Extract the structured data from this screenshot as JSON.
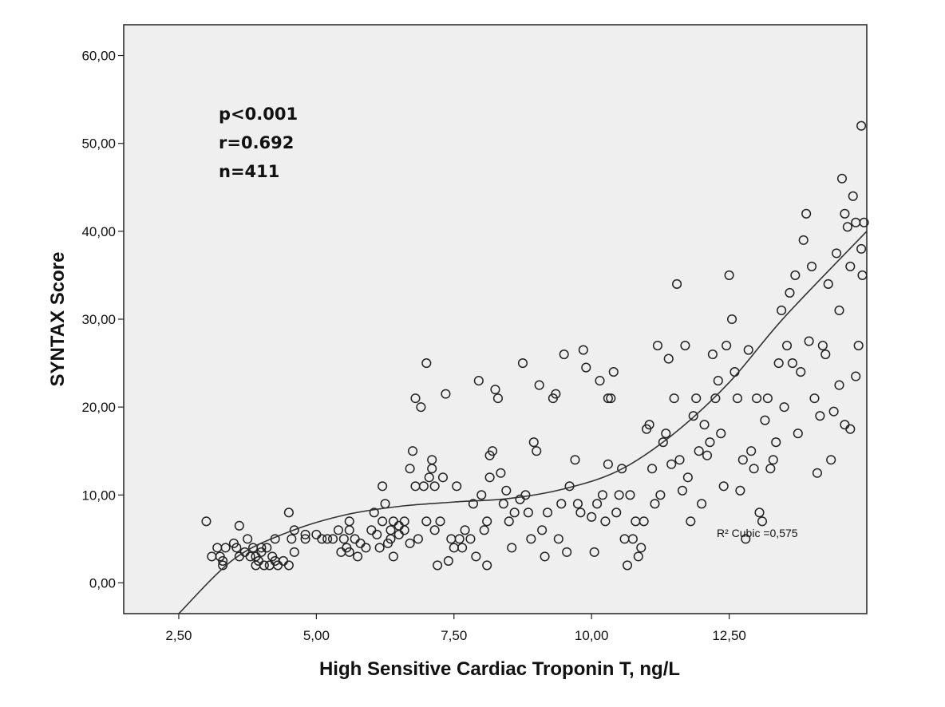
{
  "chart_data": {
    "type": "scatter",
    "xlabel": "High Sensitive Cardiac Troponin T, ng/L",
    "ylabel": "SYNTAX Score",
    "xlim": [
      1.5,
      15.0
    ],
    "ylim": [
      -3.5,
      63.5
    ],
    "x_ticks": [
      2.5,
      5.0,
      7.5,
      10.0,
      12.5
    ],
    "x_tick_labels": [
      "2,50",
      "5,00",
      "7,50",
      "10,00",
      "12,50"
    ],
    "y_ticks": [
      0,
      10,
      20,
      30,
      40,
      50,
      60
    ],
    "y_tick_labels": [
      "0,00",
      "10,00",
      "20,00",
      "30,00",
      "40,00",
      "50,00",
      "60,00"
    ],
    "annotations": [
      "p<0.001",
      "r=0.692",
      "n=411"
    ],
    "fit": {
      "type": "cubic",
      "label": "R² Cubic =0,575",
      "curve_x": [
        2.5,
        3.5,
        4.5,
        5.5,
        6.5,
        7.5,
        8.5,
        9.5,
        10.5,
        11.5,
        12.5,
        13.5,
        15.0
      ],
      "curve_y": [
        -3.5,
        2.7,
        5.8,
        7.7,
        8.7,
        9.2,
        9.6,
        10.7,
        12.8,
        17.0,
        22.8,
        30.2,
        40.0
      ]
    },
    "background": "#efefef",
    "marker": "open-circle",
    "grid": false,
    "points": [
      [
        3.0,
        7.0
      ],
      [
        3.1,
        3.0
      ],
      [
        3.2,
        4.0
      ],
      [
        3.25,
        3.0
      ],
      [
        3.3,
        2.5
      ],
      [
        3.3,
        2.0
      ],
      [
        3.35,
        4.0
      ],
      [
        3.5,
        4.5
      ],
      [
        3.55,
        4.0
      ],
      [
        3.6,
        6.5
      ],
      [
        3.6,
        3.0
      ],
      [
        3.7,
        3.5
      ],
      [
        3.75,
        5.0
      ],
      [
        3.8,
        3.0
      ],
      [
        3.85,
        4.0
      ],
      [
        3.9,
        2.0
      ],
      [
        3.9,
        3.0
      ],
      [
        3.95,
        2.5
      ],
      [
        4.0,
        3.5
      ],
      [
        4.0,
        4.0
      ],
      [
        4.05,
        2.0
      ],
      [
        4.1,
        4.0
      ],
      [
        4.15,
        2.0
      ],
      [
        4.2,
        3.0
      ],
      [
        4.25,
        2.5
      ],
      [
        4.25,
        5.0
      ],
      [
        4.3,
        2.0
      ],
      [
        4.4,
        2.5
      ],
      [
        4.5,
        8.0
      ],
      [
        4.5,
        2.0
      ],
      [
        4.55,
        5.0
      ],
      [
        4.6,
        3.5
      ],
      [
        4.6,
        6.0
      ],
      [
        4.8,
        5.0
      ],
      [
        4.8,
        5.5
      ],
      [
        5.0,
        5.5
      ],
      [
        5.1,
        5.0
      ],
      [
        5.2,
        5.0
      ],
      [
        5.3,
        5.0
      ],
      [
        5.4,
        6.0
      ],
      [
        5.45,
        3.5
      ],
      [
        5.5,
        5.0
      ],
      [
        5.55,
        4.0
      ],
      [
        5.6,
        6.0
      ],
      [
        5.6,
        7.0
      ],
      [
        5.6,
        3.5
      ],
      [
        5.7,
        5.0
      ],
      [
        5.75,
        3.0
      ],
      [
        5.8,
        4.5
      ],
      [
        5.9,
        4.0
      ],
      [
        6.0,
        6.0
      ],
      [
        6.05,
        8.0
      ],
      [
        6.1,
        5.5
      ],
      [
        6.15,
        4.0
      ],
      [
        6.2,
        7.0
      ],
      [
        6.2,
        11.0
      ],
      [
        6.25,
        9.0
      ],
      [
        6.3,
        4.5
      ],
      [
        6.35,
        5.0
      ],
      [
        6.35,
        6.0
      ],
      [
        6.4,
        3.0
      ],
      [
        6.4,
        7.0
      ],
      [
        6.5,
        5.5
      ],
      [
        6.5,
        6.5
      ],
      [
        6.6,
        6.0
      ],
      [
        6.6,
        7.0
      ],
      [
        6.7,
        4.5
      ],
      [
        6.7,
        13.0
      ],
      [
        6.75,
        15.0
      ],
      [
        6.8,
        11.0
      ],
      [
        6.8,
        21.0
      ],
      [
        6.85,
        5.0
      ],
      [
        6.9,
        20.0
      ],
      [
        6.95,
        11.0
      ],
      [
        7.0,
        7.0
      ],
      [
        7.05,
        12.0
      ],
      [
        7.0,
        25.0
      ],
      [
        7.1,
        14.0
      ],
      [
        7.1,
        13.0
      ],
      [
        7.15,
        11.0
      ],
      [
        7.15,
        6.0
      ],
      [
        7.2,
        2.0
      ],
      [
        7.25,
        7.0
      ],
      [
        7.3,
        12.0
      ],
      [
        7.35,
        21.5
      ],
      [
        7.4,
        2.5
      ],
      [
        7.45,
        5.0
      ],
      [
        7.5,
        4.0
      ],
      [
        7.55,
        11.0
      ],
      [
        7.6,
        5.0
      ],
      [
        7.65,
        4.0
      ],
      [
        7.7,
        6.0
      ],
      [
        7.8,
        5.0
      ],
      [
        7.85,
        9.0
      ],
      [
        7.9,
        3.0
      ],
      [
        7.95,
        23.0
      ],
      [
        8.0,
        10.0
      ],
      [
        8.05,
        6.0
      ],
      [
        8.1,
        7.0
      ],
      [
        8.1,
        2.0
      ],
      [
        8.15,
        14.5
      ],
      [
        8.15,
        12.0
      ],
      [
        8.2,
        15.0
      ],
      [
        8.25,
        22.0
      ],
      [
        8.3,
        21.0
      ],
      [
        8.35,
        12.5
      ],
      [
        8.4,
        9.0
      ],
      [
        8.45,
        10.5
      ],
      [
        8.5,
        7.0
      ],
      [
        8.55,
        4.0
      ],
      [
        8.6,
        8.0
      ],
      [
        8.7,
        9.5
      ],
      [
        8.75,
        25.0
      ],
      [
        8.8,
        10.0
      ],
      [
        8.85,
        8.0
      ],
      [
        8.9,
        5.0
      ],
      [
        8.95,
        16.0
      ],
      [
        9.0,
        15.0
      ],
      [
        9.05,
        22.5
      ],
      [
        9.1,
        6.0
      ],
      [
        9.15,
        3.0
      ],
      [
        9.2,
        8.0
      ],
      [
        9.3,
        21.0
      ],
      [
        9.35,
        21.5
      ],
      [
        9.4,
        5.0
      ],
      [
        9.45,
        9.0
      ],
      [
        9.5,
        26.0
      ],
      [
        9.55,
        3.5
      ],
      [
        9.6,
        11.0
      ],
      [
        9.7,
        14.0
      ],
      [
        9.75,
        9.0
      ],
      [
        9.8,
        8.0
      ],
      [
        9.85,
        26.5
      ],
      [
        9.9,
        24.5
      ],
      [
        10.0,
        7.5
      ],
      [
        10.05,
        3.5
      ],
      [
        10.1,
        9.0
      ],
      [
        10.15,
        23.0
      ],
      [
        10.2,
        10.0
      ],
      [
        10.25,
        7.0
      ],
      [
        10.3,
        13.5
      ],
      [
        10.3,
        21.0
      ],
      [
        10.35,
        21.0
      ],
      [
        10.4,
        24.0
      ],
      [
        10.45,
        8.0
      ],
      [
        10.5,
        10.0
      ],
      [
        10.55,
        13.0
      ],
      [
        10.6,
        5.0
      ],
      [
        10.65,
        2.0
      ],
      [
        10.7,
        10.0
      ],
      [
        10.75,
        5.0
      ],
      [
        10.8,
        7.0
      ],
      [
        10.85,
        3.0
      ],
      [
        10.9,
        4.0
      ],
      [
        10.95,
        7.0
      ],
      [
        11.0,
        17.5
      ],
      [
        11.05,
        18.0
      ],
      [
        11.1,
        13.0
      ],
      [
        11.15,
        9.0
      ],
      [
        11.2,
        27.0
      ],
      [
        11.25,
        10.0
      ],
      [
        11.3,
        16.0
      ],
      [
        11.35,
        17.0
      ],
      [
        11.4,
        25.5
      ],
      [
        11.45,
        13.5
      ],
      [
        11.5,
        21.0
      ],
      [
        11.55,
        34.0
      ],
      [
        11.6,
        14.0
      ],
      [
        11.65,
        10.5
      ],
      [
        11.7,
        27.0
      ],
      [
        11.75,
        12.0
      ],
      [
        11.8,
        7.0
      ],
      [
        11.85,
        19.0
      ],
      [
        11.9,
        21.0
      ],
      [
        11.95,
        15.0
      ],
      [
        12.0,
        9.0
      ],
      [
        12.05,
        18.0
      ],
      [
        12.1,
        14.5
      ],
      [
        12.15,
        16.0
      ],
      [
        12.2,
        26.0
      ],
      [
        12.25,
        21.0
      ],
      [
        12.3,
        23.0
      ],
      [
        12.35,
        17.0
      ],
      [
        12.4,
        11.0
      ],
      [
        12.45,
        27.0
      ],
      [
        12.5,
        35.0
      ],
      [
        12.55,
        30.0
      ],
      [
        12.6,
        24.0
      ],
      [
        12.65,
        21.0
      ],
      [
        12.7,
        10.5
      ],
      [
        12.75,
        14.0
      ],
      [
        12.8,
        5.0
      ],
      [
        12.85,
        26.5
      ],
      [
        12.9,
        15.0
      ],
      [
        12.95,
        13.0
      ],
      [
        13.0,
        21.0
      ],
      [
        13.05,
        8.0
      ],
      [
        13.1,
        7.0
      ],
      [
        13.15,
        18.5
      ],
      [
        13.2,
        21.0
      ],
      [
        13.25,
        13.0
      ],
      [
        13.3,
        14.0
      ],
      [
        13.35,
        16.0
      ],
      [
        13.4,
        25.0
      ],
      [
        13.45,
        31.0
      ],
      [
        13.5,
        20.0
      ],
      [
        13.55,
        27.0
      ],
      [
        13.6,
        33.0
      ],
      [
        13.65,
        25.0
      ],
      [
        13.7,
        35.0
      ],
      [
        13.75,
        17.0
      ],
      [
        13.8,
        24.0
      ],
      [
        13.85,
        39.0
      ],
      [
        13.9,
        42.0
      ],
      [
        13.95,
        27.5
      ],
      [
        14.0,
        36.0
      ],
      [
        14.05,
        21.0
      ],
      [
        14.1,
        12.5
      ],
      [
        14.15,
        19.0
      ],
      [
        14.2,
        27.0
      ],
      [
        14.25,
        26.0
      ],
      [
        14.3,
        34.0
      ],
      [
        14.35,
        14.0
      ],
      [
        14.4,
        19.5
      ],
      [
        14.45,
        37.5
      ],
      [
        14.5,
        31.0
      ],
      [
        14.55,
        46.0
      ],
      [
        14.6,
        42.0
      ],
      [
        14.65,
        40.5
      ],
      [
        14.7,
        36.0
      ],
      [
        14.75,
        44.0
      ],
      [
        14.8,
        41.0
      ],
      [
        14.85,
        27.0
      ],
      [
        14.9,
        52.0
      ],
      [
        14.95,
        41.0
      ],
      [
        14.9,
        38.0
      ],
      [
        14.92,
        35.0
      ],
      [
        14.8,
        23.5
      ],
      [
        14.7,
        17.5
      ],
      [
        14.6,
        18.0
      ],
      [
        14.5,
        22.5
      ]
    ]
  }
}
